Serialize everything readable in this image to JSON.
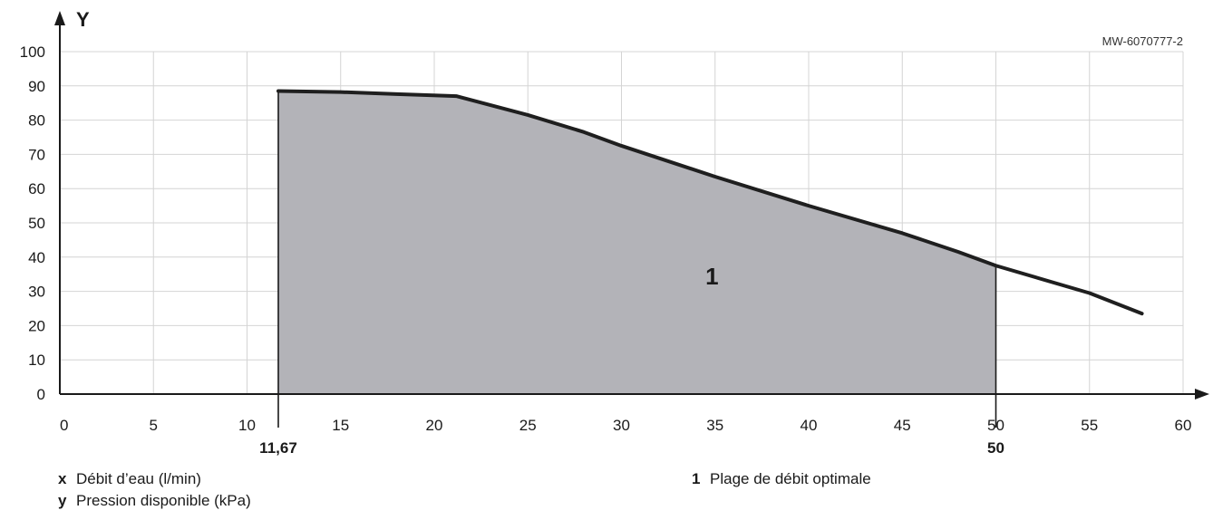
{
  "reference": "MW-6070777-2",
  "chart_data": {
    "type": "area",
    "xlim": [
      0,
      60
    ],
    "ylim": [
      0,
      100
    ],
    "x_ticks": [
      0,
      5,
      10,
      15,
      20,
      25,
      30,
      35,
      40,
      45,
      50,
      55,
      60
    ],
    "y_ticks": [
      0,
      10,
      20,
      30,
      40,
      50,
      60,
      70,
      80,
      90,
      100
    ],
    "grid": true,
    "y_axis_label": "Y",
    "marked_x": [
      {
        "value": 11.67,
        "label": "11,67"
      },
      {
        "value": 50,
        "label": "50"
      }
    ],
    "series": [
      {
        "x": [
          11.67,
          15,
          18,
          21.2,
          25,
          28,
          30,
          35,
          40,
          45,
          48,
          50,
          55,
          57.8
        ],
        "y": [
          88.5,
          88.2,
          87.6,
          87,
          81.5,
          76.5,
          72.5,
          63.5,
          55,
          47,
          41.5,
          37.5,
          29.5,
          23.5
        ]
      }
    ],
    "shaded_region": {
      "x_from": 11.67,
      "x_to": 50,
      "label": "1"
    },
    "colors": {
      "curve": "#1f1f1f",
      "fill": "#b3b3b8",
      "grid": "#d4d4d4",
      "axis": "#1a1a1a"
    }
  },
  "legend": [
    {
      "key": "x",
      "text": "Débit d’eau (l/min)"
    },
    {
      "key": "y",
      "text": "Pression disponible (kPa)"
    },
    {
      "key": "1",
      "text": "Plage de débit optimale"
    }
  ]
}
